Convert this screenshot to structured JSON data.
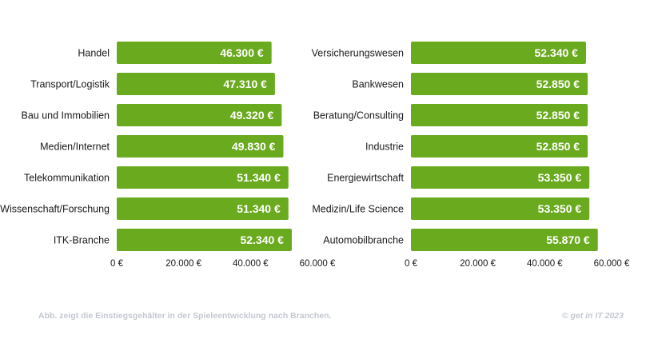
{
  "chart_data": [
    {
      "type": "bar",
      "orientation": "horizontal",
      "categories": [
        "Handel",
        "Transport/Logistik",
        "Bau und Immobilien",
        "Medien/Internet",
        "Telekommunikation",
        "Wissenschaft/Forschung",
        "ITK-Branche"
      ],
      "values": [
        46300,
        47310,
        49320,
        49830,
        51340,
        51340,
        52340
      ],
      "data_labels": [
        "46.300 €",
        "47.310 €",
        "49.320 €",
        "49.830 €",
        "51.340 €",
        "51.340 €",
        "52.340 €"
      ],
      "xlim": [
        0,
        60000
      ],
      "xticks": [
        0,
        20000,
        40000,
        60000
      ],
      "xtick_labels": [
        "0 €",
        "20.000 €",
        "40.000 €",
        "60.000 €"
      ],
      "bar_color": "#6aaa1e",
      "grid": false
    },
    {
      "type": "bar",
      "orientation": "horizontal",
      "categories": [
        "Versicherungswesen",
        "Bankwesen",
        "Beratung/Consulting",
        "Industrie",
        "Energiewirtschaft",
        "Medizin/Life Science",
        "Automobilbranche"
      ],
      "values": [
        52340,
        52850,
        52850,
        52850,
        53350,
        53350,
        55870
      ],
      "data_labels": [
        "52.340 €",
        "52.850 €",
        "52.850 €",
        "52.850 €",
        "53.350 €",
        "53.350 €",
        "55.870 €"
      ],
      "xlim": [
        0,
        60000
      ],
      "xticks": [
        0,
        20000,
        40000,
        60000
      ],
      "xtick_labels": [
        "0 €",
        "20.000 €",
        "40.000 €",
        "60.000 €"
      ],
      "bar_color": "#6aaa1e",
      "grid": false
    }
  ],
  "footer": {
    "caption": "Abb. zeigt die Einstiegsgehälter in der Spieleentwicklung nach Branchen.",
    "copyright": "© get in IT 2023"
  },
  "colors": {
    "bar": "#6aaa1e",
    "bar_label": "#ffffff",
    "text": "#1a1a1a",
    "footer": "#c3c8cf"
  }
}
